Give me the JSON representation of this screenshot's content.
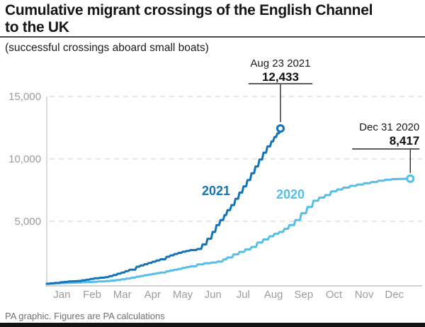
{
  "chart_data": {
    "type": "line",
    "title_line1": "Cumulative migrant crossings of the English Channel",
    "title_line2": "to the UK",
    "subtitle": "(successful crossings aboard small boats)",
    "grid": "dashed horizontal gridlines",
    "legend": "inline series labels",
    "x_axis": {
      "unit": "day of year (Jan 1 = 0)",
      "range_days": [
        0,
        364
      ],
      "tick_labels": [
        "Jan",
        "Feb",
        "Mar",
        "Apr",
        "May",
        "Jun",
        "Jul",
        "Aug",
        "Sep",
        "Oct",
        "Nov",
        "Dec"
      ]
    },
    "y_axis": {
      "ticks": [
        5000,
        10000,
        15000
      ],
      "tick_labels": [
        "5,000",
        "10,000",
        "15,000"
      ],
      "range": [
        0,
        15800
      ]
    },
    "series": [
      {
        "name": "2021",
        "color": "#1174b9",
        "end_label": {
          "date": "Aug 23 2021",
          "value_text": "12,433",
          "value": 12433
        },
        "points_day_value": [
          [
            0,
            0
          ],
          [
            8,
            60
          ],
          [
            14,
            120
          ],
          [
            22,
            180
          ],
          [
            31,
            223
          ],
          [
            40,
            330
          ],
          [
            48,
            440
          ],
          [
            59,
            531
          ],
          [
            67,
            700
          ],
          [
            75,
            900
          ],
          [
            83,
            1120
          ],
          [
            90,
            1362
          ],
          [
            98,
            1560
          ],
          [
            106,
            1760
          ],
          [
            114,
            1960
          ],
          [
            120,
            2160
          ],
          [
            128,
            2380
          ],
          [
            136,
            2560
          ],
          [
            144,
            2700
          ],
          [
            151,
            2783
          ],
          [
            156,
            3150
          ],
          [
            161,
            3600
          ],
          [
            166,
            4150
          ],
          [
            170,
            4700
          ],
          [
            174,
            5100
          ],
          [
            178,
            5500
          ],
          [
            181,
            5900
          ],
          [
            185,
            6300
          ],
          [
            189,
            6800
          ],
          [
            193,
            7300
          ],
          [
            197,
            7800
          ],
          [
            201,
            8300
          ],
          [
            205,
            8850
          ],
          [
            209,
            9400
          ],
          [
            213,
            9950
          ],
          [
            217,
            10500
          ],
          [
            221,
            11000
          ],
          [
            225,
            11400
          ],
          [
            228,
            11750
          ],
          [
            231,
            12050
          ],
          [
            234,
            12433
          ]
        ]
      },
      {
        "name": "2020",
        "color": "#57bde9",
        "end_label": {
          "date": "Dec 31 2020",
          "value_text": "8,417",
          "value": 8417
        },
        "points_day_value": [
          [
            0,
            0
          ],
          [
            10,
            40
          ],
          [
            20,
            70
          ],
          [
            31,
            100
          ],
          [
            42,
            140
          ],
          [
            52,
            180
          ],
          [
            59,
            212
          ],
          [
            70,
            300
          ],
          [
            80,
            420
          ],
          [
            90,
            560
          ],
          [
            98,
            680
          ],
          [
            106,
            790
          ],
          [
            114,
            900
          ],
          [
            120,
            1000
          ],
          [
            128,
            1120
          ],
          [
            136,
            1260
          ],
          [
            144,
            1400
          ],
          [
            151,
            1550
          ],
          [
            158,
            1640
          ],
          [
            165,
            1700
          ],
          [
            171,
            1780
          ],
          [
            177,
            1950
          ],
          [
            181,
            2100
          ],
          [
            187,
            2350
          ],
          [
            193,
            2550
          ],
          [
            199,
            2750
          ],
          [
            205,
            2950
          ],
          [
            211,
            3300
          ],
          [
            217,
            3550
          ],
          [
            223,
            3800
          ],
          [
            228,
            4000
          ],
          [
            233,
            4150
          ],
          [
            238,
            4400
          ],
          [
            243,
            4700
          ],
          [
            249,
            5100
          ],
          [
            255,
            5650
          ],
          [
            261,
            6150
          ],
          [
            267,
            6650
          ],
          [
            273,
            6900
          ],
          [
            279,
            7100
          ],
          [
            285,
            7400
          ],
          [
            291,
            7550
          ],
          [
            297,
            7700
          ],
          [
            304,
            7840
          ],
          [
            311,
            7950
          ],
          [
            318,
            8050
          ],
          [
            325,
            8150
          ],
          [
            332,
            8250
          ],
          [
            339,
            8330
          ],
          [
            346,
            8380
          ],
          [
            353,
            8400
          ],
          [
            359,
            8410
          ],
          [
            364,
            8417
          ]
        ]
      }
    ]
  },
  "footer": {
    "credit": "PA graphic. Figures are PA calculations"
  }
}
